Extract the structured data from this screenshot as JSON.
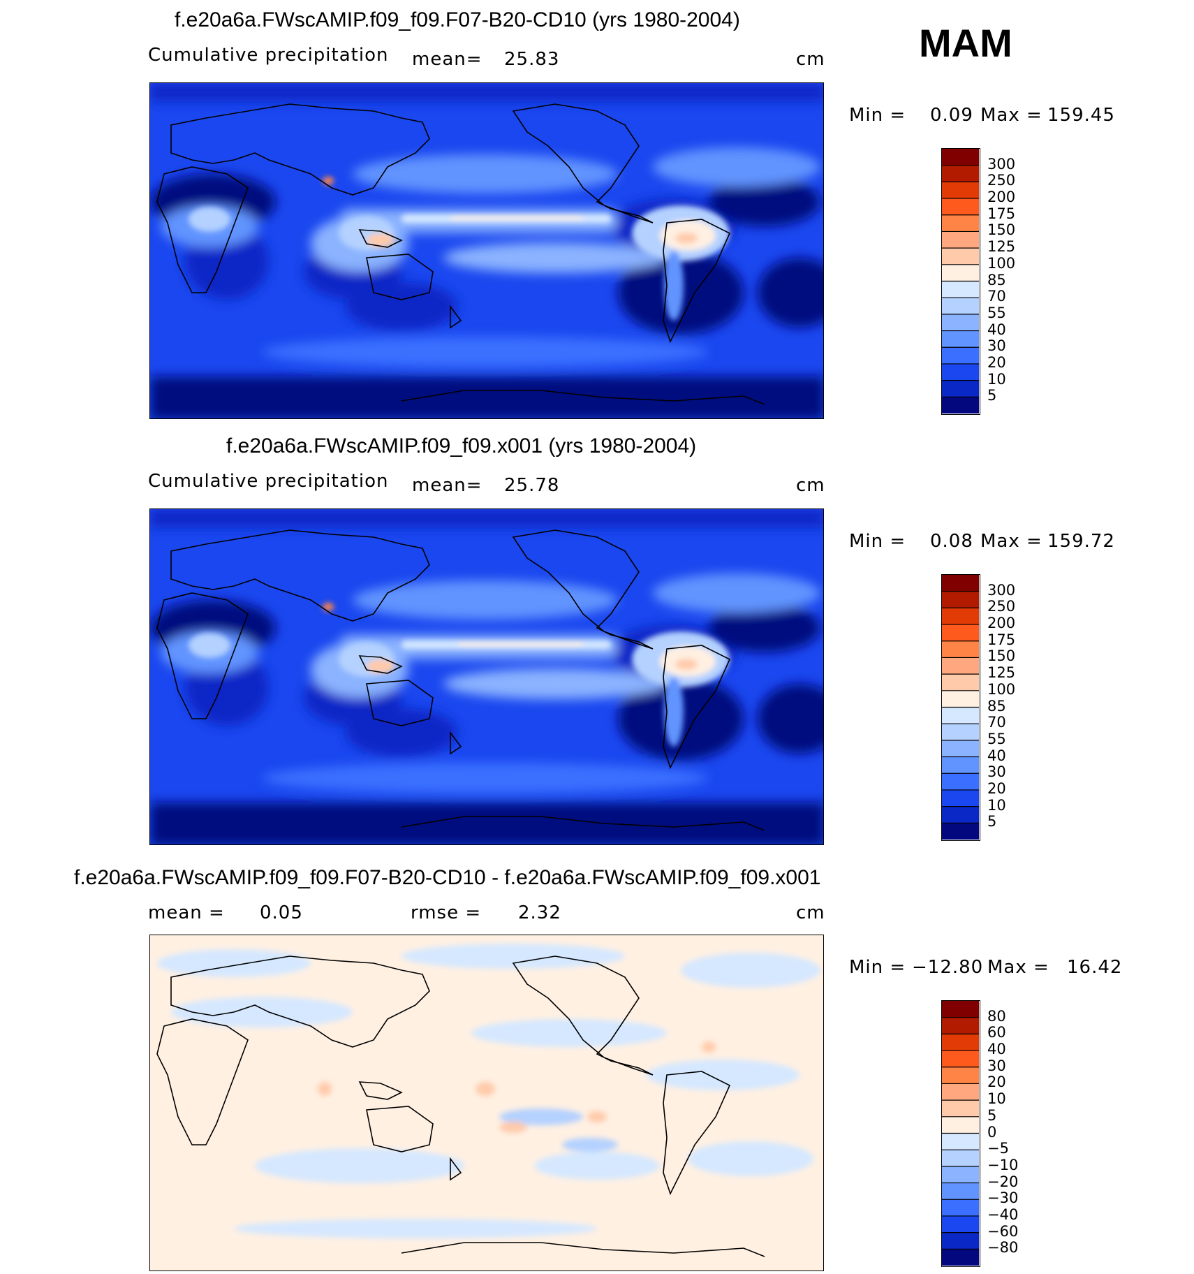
{
  "season": "MAM",
  "panels": [
    {
      "title": "f.e20a6a.FWscAMIP.f09_f09.F07-B20-CD10 (yrs 1980-2004)",
      "variable": "Cumulative precipitation",
      "mean_label": "mean=",
      "mean_value": "25.83",
      "units": "cm",
      "min_label": "Min =",
      "min_value": "0.09",
      "max_label": "Max =",
      "max_value": "159.45",
      "colorbar": {
        "labels": [
          "300",
          "250",
          "200",
          "175",
          "150",
          "125",
          "100",
          "85",
          "70",
          "55",
          "40",
          "30",
          "20",
          "10",
          "5"
        ],
        "colors": [
          "#800000",
          "#b31b00",
          "#e33b06",
          "#ff5a1e",
          "#ff8446",
          "#ffa77e",
          "#ffcaaa",
          "#fff0e2",
          "#d5e8ff",
          "#b4d1ff",
          "#8bb3ff",
          "#6294ff",
          "#3a6fff",
          "#1a47ef",
          "#0a28c6",
          "#03087f"
        ]
      }
    },
    {
      "title": "f.e20a6a.FWscAMIP.f09_f09.x001 (yrs 1980-2004)",
      "variable": "Cumulative precipitation",
      "mean_label": "mean=",
      "mean_value": "25.78",
      "units": "cm",
      "min_label": "Min =",
      "min_value": "0.08",
      "max_label": "Max =",
      "max_value": "159.72",
      "colorbar": {
        "labels": [
          "300",
          "250",
          "200",
          "175",
          "150",
          "125",
          "100",
          "85",
          "70",
          "55",
          "40",
          "30",
          "20",
          "10",
          "5"
        ],
        "colors": [
          "#800000",
          "#b31b00",
          "#e33b06",
          "#ff5a1e",
          "#ff8446",
          "#ffa77e",
          "#ffcaaa",
          "#fff0e2",
          "#d5e8ff",
          "#b4d1ff",
          "#8bb3ff",
          "#6294ff",
          "#3a6fff",
          "#1a47ef",
          "#0a28c6",
          "#03087f"
        ]
      }
    },
    {
      "title": "f.e20a6a.FWscAMIP.f09_f09.F07-B20-CD10 - f.e20a6a.FWscAMIP.f09_f09.x001",
      "mean_label": "mean =",
      "mean_value": "0.05",
      "rmse_label": "rmse =",
      "rmse_value": "2.32",
      "units": "cm",
      "min_label": "Min =",
      "min_value": "−12.80",
      "max_label": "Max =",
      "max_value": "16.42",
      "colorbar": {
        "labels": [
          "80",
          "60",
          "40",
          "30",
          "20",
          "10",
          "5",
          "0",
          "−5",
          "−10",
          "−20",
          "−30",
          "−40",
          "−60",
          "−80"
        ],
        "colors": [
          "#800000",
          "#b31b00",
          "#e33b06",
          "#ff5a1e",
          "#ff8446",
          "#ffa77e",
          "#ffcaaa",
          "#fff0e2",
          "#d5e8ff",
          "#b4d1ff",
          "#8bb3ff",
          "#6294ff",
          "#3a6fff",
          "#1a47ef",
          "#0a28c6",
          "#03087f"
        ]
      }
    }
  ]
}
